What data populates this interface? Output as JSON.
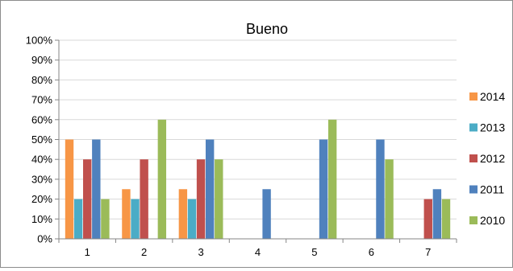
{
  "chart_data": {
    "type": "bar",
    "title": "Bueno",
    "categories": [
      "1",
      "2",
      "3",
      "4",
      "5",
      "6",
      "7"
    ],
    "series": [
      {
        "name": "2014",
        "color": "#f79646",
        "values": [
          0.5,
          0.25,
          0.25,
          0,
          0,
          0,
          0
        ]
      },
      {
        "name": "2013",
        "color": "#4bacc6",
        "values": [
          0.2,
          0.2,
          0.2,
          0,
          0,
          0,
          0
        ]
      },
      {
        "name": "2012",
        "color": "#c0504d",
        "values": [
          0.4,
          0.4,
          0.4,
          0,
          0,
          0,
          0.2
        ]
      },
      {
        "name": "2011",
        "color": "#4f81bd",
        "values": [
          0.5,
          0,
          0.5,
          0.25,
          0.5,
          0.5,
          0.25
        ]
      },
      {
        "name": "2010",
        "color": "#9bbb59",
        "values": [
          0.2,
          0.6,
          0.4,
          0,
          0.6,
          0.4,
          0.2
        ]
      }
    ],
    "yticks": [
      "0%",
      "10%",
      "20%",
      "30%",
      "40%",
      "50%",
      "60%",
      "70%",
      "80%",
      "90%",
      "100%"
    ],
    "ylim": [
      0,
      1
    ],
    "xlabel": "",
    "ylabel": "",
    "grid": true,
    "legend_position": "right"
  }
}
